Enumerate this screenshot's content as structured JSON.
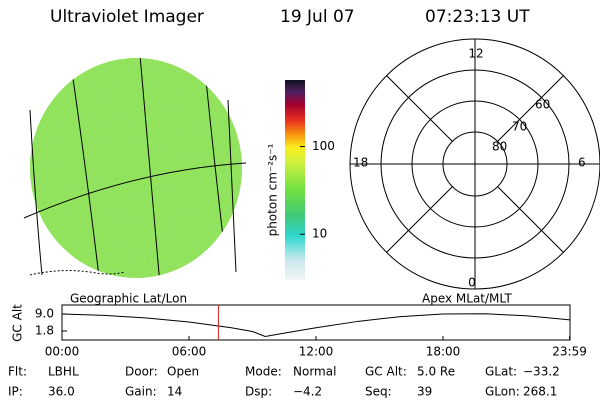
{
  "header": {
    "title": "Ultraviolet Imager",
    "date": "19 Jul 07",
    "time": "07:23:13 UT"
  },
  "colorbar": {
    "label": "photon cm⁻²s⁻¹",
    "log": true,
    "range": [
      3,
      575
    ],
    "ticks": [
      10,
      100
    ]
  },
  "polar": {
    "hour_labels": [
      "12",
      "18",
      "6",
      "0"
    ],
    "lat_labels": [
      "60",
      "70",
      "80"
    ]
  },
  "altitude_plot": {
    "type": "line",
    "title_left": "Geographic Lat/Lon",
    "title_right": "Apex MLat/MLT",
    "y_label": "GC Alt",
    "ylim": [
      -2.0,
      12.8
    ],
    "yticks": [
      {
        "value": 9.0,
        "label": "9.0"
      },
      1.8
    ],
    "xlim": [
      0,
      24
    ],
    "xticks": [
      {
        "value": 0,
        "label": "00:00"
      },
      {
        "value": 6,
        "label": "06:00"
      },
      {
        "value": 12,
        "label": "12:00"
      },
      {
        "value": 18,
        "label": "18:00"
      },
      {
        "value": 23.98,
        "label": "23:59"
      }
    ],
    "x": [
      0,
      2,
      4,
      6,
      8,
      9,
      9.6,
      10.5,
      12,
      14,
      16,
      18,
      20,
      22,
      24
    ],
    "values": [
      9.0,
      8.4,
      7.3,
      5.6,
      3.2,
      1.6,
      -0.5,
      0.9,
      3.2,
      5.9,
      7.9,
      9.0,
      9.1,
      8.2,
      6.5
    ],
    "color": "#000000",
    "marker_time": 7.39,
    "marker_color": "#e02020"
  },
  "footer": {
    "rows": [
      [
        [
          "Flt:",
          "LBHL"
        ],
        [
          "Door:",
          "Open"
        ],
        [
          "Mode:",
          "Normal"
        ],
        [
          "GC Alt:",
          "5.0 Re"
        ],
        [
          "GLat:",
          "−33.2"
        ]
      ],
      [
        [
          "IP:",
          "36.0"
        ],
        [
          "Gain:",
          "14"
        ],
        [
          "Dsp:",
          "−4.2"
        ],
        [
          "Seq:",
          "39"
        ],
        [
          "GLon:",
          "268.1"
        ]
      ]
    ]
  }
}
